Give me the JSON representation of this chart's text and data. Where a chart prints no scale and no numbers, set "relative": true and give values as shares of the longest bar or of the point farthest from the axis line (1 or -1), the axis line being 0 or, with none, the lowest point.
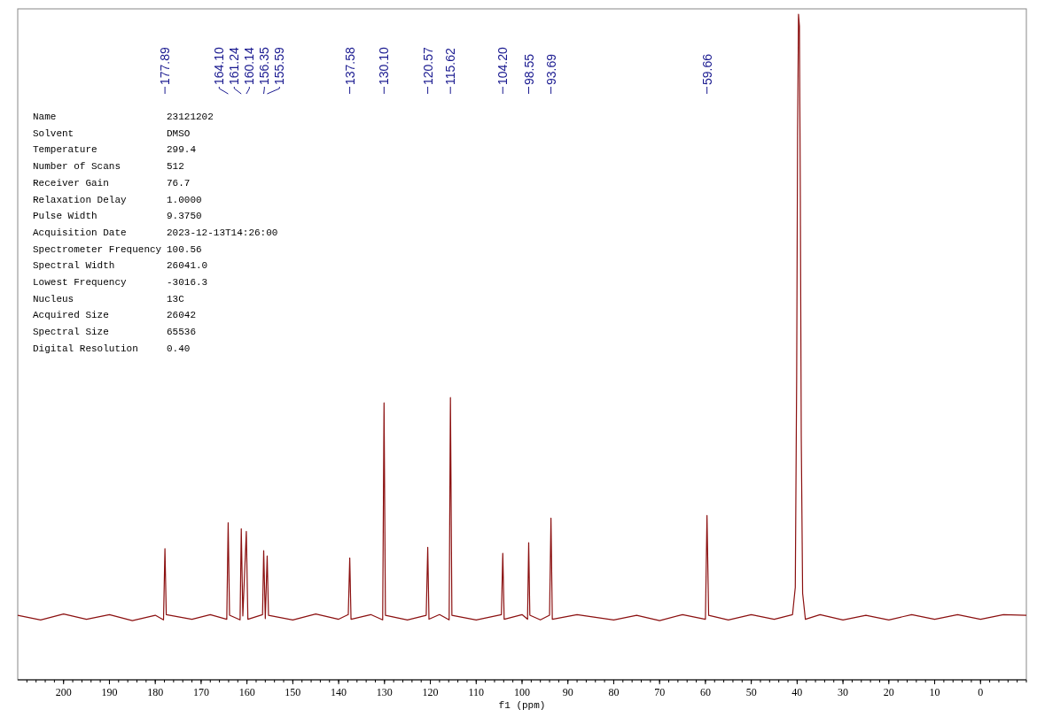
{
  "chart_data": {
    "type": "line",
    "relative": true,
    "tick_labels": "x",
    "xlabel": "f1 (ppm)",
    "xlim": [
      210,
      -10
    ],
    "xticks": [
      200,
      190,
      180,
      170,
      160,
      150,
      140,
      130,
      120,
      110,
      100,
      90,
      80,
      70,
      60,
      50,
      40,
      30,
      20,
      10,
      0
    ],
    "grid": false,
    "marker": "none",
    "line_style": "solid",
    "series": [
      {
        "color": "#8b1010",
        "x": [
          210,
          205,
          200,
          195,
          190,
          185,
          180,
          178.2,
          177.89,
          177.6,
          172,
          168,
          164.4,
          164.1,
          163.8,
          161.5,
          161.24,
          160.9,
          160.14,
          159.8,
          156.6,
          156.35,
          156.0,
          155.59,
          155.3,
          150,
          145,
          140,
          137.9,
          137.58,
          137.3,
          133,
          130.4,
          130.1,
          129.8,
          125,
          120.9,
          120.57,
          120.3,
          118,
          115.9,
          115.62,
          115.3,
          110,
          104.5,
          104.2,
          103.9,
          100,
          98.8,
          98.55,
          98.3,
          96,
          94.0,
          93.69,
          93.4,
          88,
          80,
          75,
          70,
          65,
          60.0,
          59.66,
          59.3,
          55,
          50,
          45,
          41.0,
          40.4,
          40.1,
          39.9,
          39.7,
          39.5,
          39.3,
          39.1,
          38.8,
          38.2,
          35,
          30,
          25,
          20,
          15,
          10,
          5,
          0,
          -5,
          -10
        ],
        "values": [
          0.097,
          0.09,
          0.099,
          0.091,
          0.098,
          0.089,
          0.097,
          0.09,
          0.197,
          0.098,
          0.091,
          0.098,
          0.091,
          0.236,
          0.097,
          0.09,
          0.227,
          0.096,
          0.223,
          0.091,
          0.098,
          0.194,
          0.092,
          0.186,
          0.097,
          0.09,
          0.099,
          0.091,
          0.098,
          0.183,
          0.091,
          0.098,
          0.09,
          0.416,
          0.097,
          0.09,
          0.097,
          0.199,
          0.091,
          0.098,
          0.09,
          0.424,
          0.097,
          0.09,
          0.098,
          0.19,
          0.091,
          0.098,
          0.091,
          0.206,
          0.097,
          0.09,
          0.097,
          0.243,
          0.091,
          0.098,
          0.09,
          0.097,
          0.089,
          0.098,
          0.091,
          0.247,
          0.097,
          0.09,
          0.098,
          0.091,
          0.098,
          0.139,
          0.456,
          0.819,
          1.0,
          0.982,
          0.728,
          0.366,
          0.13,
          0.091,
          0.098,
          0.09,
          0.097,
          0.09,
          0.098,
          0.091,
          0.098,
          0.091,
          0.098,
          0.097
        ]
      }
    ],
    "annotations": [
      "Name",
      "23121202",
      "Solvent",
      "DMSO",
      "Temperature",
      "299.4",
      "Number of Scans",
      "512",
      "Receiver Gain",
      "76.7",
      "Relaxation Delay",
      "1.0000",
      "Pulse Width",
      "9.3750",
      "Acquisition Date",
      "2023-12-13T14:26:00",
      "Spectrometer Frequency",
      "100.56",
      "Spectral Width",
      "26041.0",
      "Lowest Frequency",
      "-3016.3",
      "Nucleus",
      "13C",
      "Acquired Size",
      "26042",
      "Spectral Size",
      "65536",
      "Digital Resolution",
      "0.40",
      {
        "text": "177.89",
        "x": 177.89
      },
      {
        "text": "164.10",
        "x": 164.1
      },
      {
        "text": "161.24",
        "x": 161.24
      },
      {
        "text": "160.14",
        "x": 160.14
      },
      {
        "text": "156.35",
        "x": 156.35
      },
      {
        "text": "155.59",
        "x": 155.59
      },
      {
        "text": "137.58",
        "x": 137.58
      },
      {
        "text": "130.10",
        "x": 130.1
      },
      {
        "text": "120.57",
        "x": 120.57
      },
      {
        "text": "115.62",
        "x": 115.62
      },
      {
        "text": "104.20",
        "x": 104.2
      },
      {
        "text": "98.55",
        "x": 98.55
      },
      {
        "text": "93.69",
        "x": 93.69
      },
      {
        "text": "59.66",
        "x": 59.66
      }
    ]
  }
}
